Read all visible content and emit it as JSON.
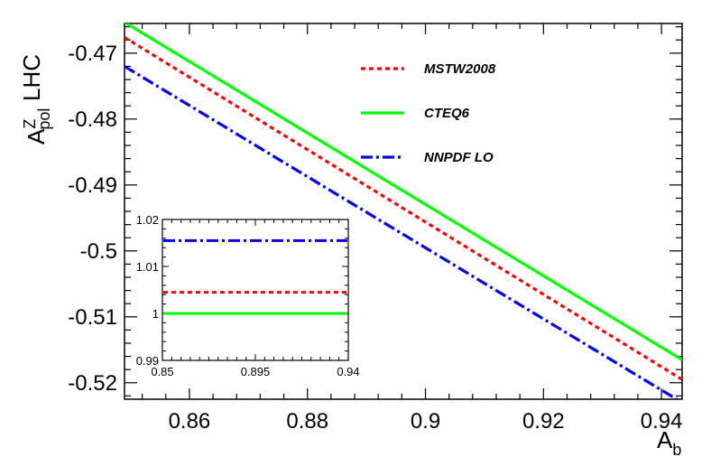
{
  "chart_data": {
    "type": "line",
    "title": "",
    "ylabel_main": "A",
    "ylabel_sup": "Z",
    "ylabel_sub": "pol",
    "ylabel_extra": "LHC",
    "xlabel_main": "A",
    "xlabel_sub": "b",
    "xlim": [
      0.849,
      0.9435
    ],
    "ylim": [
      -0.5225,
      -0.4655
    ],
    "x_ticks": [
      0.86,
      0.88,
      0.9,
      0.92,
      0.94
    ],
    "x_tick_labels": [
      "0.86",
      "0.88",
      "0.9",
      "0.92",
      "0.94"
    ],
    "y_ticks": [
      -0.47,
      -0.48,
      -0.49,
      -0.5,
      -0.51,
      -0.52
    ],
    "y_tick_labels": [
      "-0.47",
      "-0.48",
      "-0.49",
      "-0.5",
      "-0.51",
      "-0.52"
    ],
    "legend_position": "top-right",
    "series": [
      {
        "name": "MSTW2008",
        "color": "#ff0000",
        "style": "dotted",
        "x": [
          0.849,
          0.9435
        ],
        "y": [
          -0.4676,
          -0.5195
        ]
      },
      {
        "name": "CTEQ6",
        "color": "#00ff00",
        "style": "solid",
        "x": [
          0.849,
          0.9435
        ],
        "y": [
          -0.4653,
          -0.5165
        ]
      },
      {
        "name": "NNPDF LO",
        "color": "#0000ff",
        "style": "dashdot",
        "x": [
          0.849,
          0.9435
        ],
        "y": [
          -0.472,
          -0.523
        ]
      }
    ],
    "inset": {
      "xlim": [
        0.85,
        0.94
      ],
      "ylim": [
        0.99,
        1.02
      ],
      "x_ticks": [
        0.85,
        0.895,
        0.94
      ],
      "x_tick_labels": [
        "0.85",
        "0.895",
        "0.94"
      ],
      "y_ticks": [
        0.99,
        1.0,
        1.01,
        1.02
      ],
      "y_tick_labels": [
        "0.99",
        "1",
        "1.01",
        "1.02"
      ],
      "series": [
        {
          "name": "MSTW2008",
          "color": "#ff0000",
          "style": "dotted",
          "value": 1.0045
        },
        {
          "name": "CTEQ6",
          "color": "#00ff00",
          "style": "solid",
          "value": 1.0
        },
        {
          "name": "NNPDF LO",
          "color": "#0000ff",
          "style": "dashdot",
          "value": 1.0155
        }
      ]
    }
  }
}
